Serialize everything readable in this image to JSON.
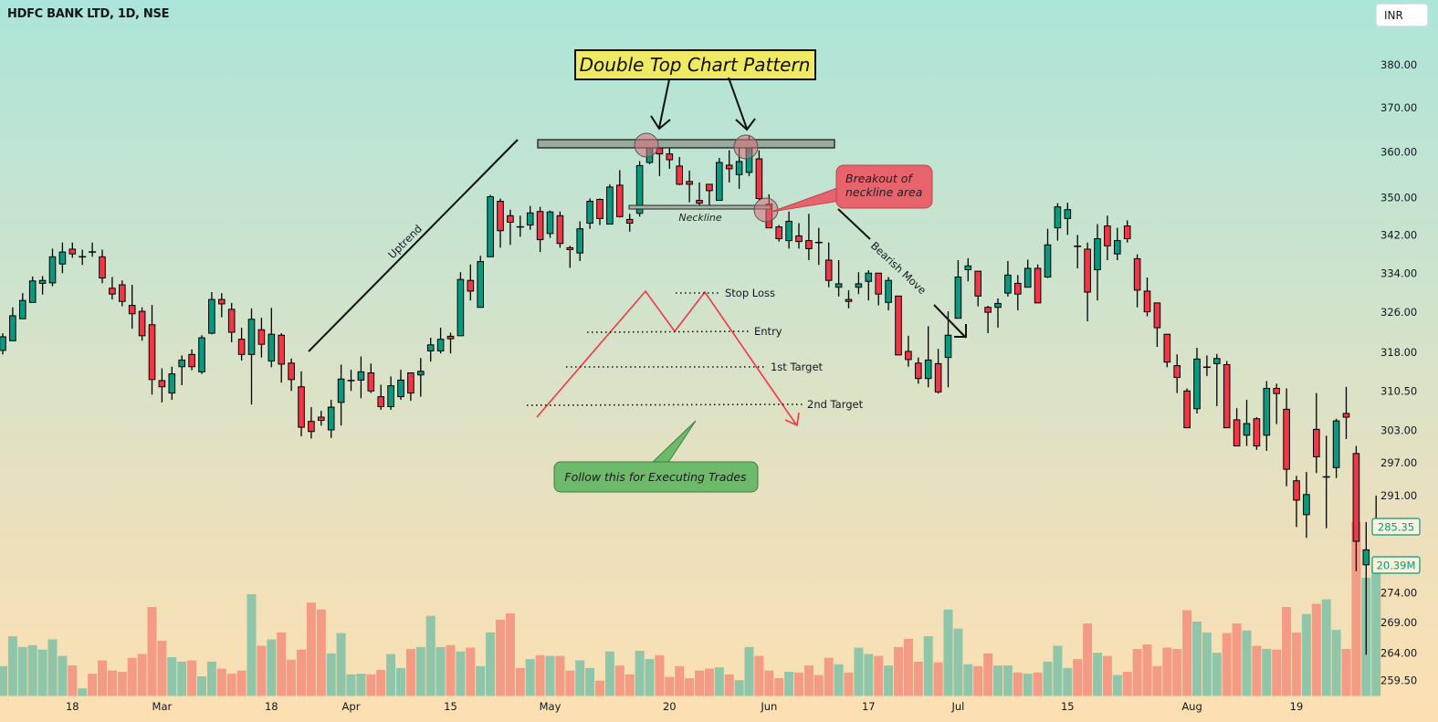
{
  "header": {
    "symbol_title": "HDFC BANK LTD, 1D, NSE",
    "currency": "INR"
  },
  "colors": {
    "up": "#089981",
    "down": "#f23645",
    "volume_up": "#8fc5a9",
    "volume_down": "#f39b84",
    "last_price": "#089981"
  },
  "annotations": {
    "title": "Double Top Chart Pattern",
    "neckline": "Neckline",
    "uptrend": "Uptrend",
    "breakout_line1": "Breakout of",
    "breakout_line2": "neckline area",
    "bearish_move": "Bearish Move",
    "stop_loss": "Stop Loss",
    "entry": "Entry",
    "target1": "1st Target",
    "target2": "2nd Target",
    "follow": "Follow this for Executing Trades"
  },
  "chart_data": {
    "type": "candlestick",
    "title": "HDFC BANK LTD, 1D, NSE",
    "y_scale": "log",
    "ylim": [
      259.5,
      384
    ],
    "grid": false,
    "y_ticks": [
      "380.00",
      "370.00",
      "360.00",
      "350.00",
      "342.00",
      "334.00",
      "326.00",
      "318.00",
      "310.50",
      "303.00",
      "297.00",
      "291.00",
      "274.00",
      "269.00",
      "264.00",
      "259.50"
    ],
    "x_ticks": [
      {
        "label": "18",
        "index": 7
      },
      {
        "label": "Mar",
        "index": 16
      },
      {
        "label": "18",
        "index": 27
      },
      {
        "label": "Apr",
        "index": 35
      },
      {
        "label": "15",
        "index": 45
      },
      {
        "label": "May",
        "index": 55
      },
      {
        "label": "20",
        "index": 67
      },
      {
        "label": "Jun",
        "index": 77
      },
      {
        "label": "17",
        "index": 87
      },
      {
        "label": "Jul",
        "index": 96
      },
      {
        "label": "15",
        "index": 107
      },
      {
        "label": "Aug",
        "index": 119.5
      },
      {
        "label": "19",
        "index": 130
      }
    ],
    "last_price": "285.35",
    "last_volume": "20.39M",
    "ohlc_fields": [
      "open",
      "high",
      "low",
      "close"
    ],
    "ohlc": [
      [
        318.4,
        321.8,
        317.6,
        321.1
      ],
      [
        320.3,
        327,
        320.3,
        325.3
      ],
      [
        324.7,
        329.9,
        324.7,
        328.4
      ],
      [
        328,
        333.3,
        328,
        332.4
      ],
      [
        331.9,
        333.4,
        329.6,
        332.5
      ],
      [
        332,
        339.1,
        331.3,
        337.4
      ],
      [
        335.9,
        340.4,
        334,
        338.4
      ],
      [
        339,
        340.4,
        337.2,
        338
      ],
      [
        337.3,
        338.9,
        335.7,
        337.4
      ],
      [
        338.4,
        340.4,
        337.4,
        338.2
      ],
      [
        337.4,
        338.9,
        331.9,
        333
      ],
      [
        330.9,
        333.2,
        328.6,
        329.7
      ],
      [
        331.6,
        332.5,
        327.2,
        328.2
      ],
      [
        327.4,
        331.6,
        322.7,
        325.7
      ],
      [
        326.2,
        327,
        320.3,
        321.3
      ],
      [
        323.5,
        327.5,
        309.8,
        312.7
      ],
      [
        312.5,
        314.9,
        308.3,
        311.3
      ],
      [
        310.1,
        315.2,
        308.8,
        313.8
      ],
      [
        315.2,
        317.4,
        311.6,
        316.5
      ],
      [
        317.6,
        318.6,
        314.5,
        315.2
      ],
      [
        314.2,
        321.4,
        313.8,
        320.9
      ],
      [
        321.8,
        330.1,
        321.6,
        328.6
      ],
      [
        328.6,
        329.9,
        325,
        327.7
      ],
      [
        326.6,
        327.9,
        320,
        322
      ],
      [
        320.6,
        322.9,
        316.4,
        317.6
      ],
      [
        317.6,
        326.8,
        307.9,
        324.6
      ],
      [
        322.5,
        324.9,
        317,
        319.6
      ],
      [
        316.3,
        326.9,
        315.1,
        321.6
      ],
      [
        321.4,
        321.8,
        312.1,
        315.7
      ],
      [
        315.9,
        316.8,
        310.5,
        312.7
      ],
      [
        311.3,
        314.3,
        301.9,
        303.6
      ],
      [
        304.7,
        307.4,
        301.5,
        302.8
      ],
      [
        305.5,
        306.7,
        303.9,
        304.9
      ],
      [
        303.1,
        308.8,
        301.6,
        307.4
      ],
      [
        308.3,
        315.6,
        303.9,
        312.8
      ],
      [
        312.4,
        314.6,
        310.5,
        312.5
      ],
      [
        312.6,
        317.2,
        309.1,
        314.2
      ],
      [
        314,
        315.8,
        310.1,
        310.5
      ],
      [
        309.4,
        311.7,
        306.9,
        307.5
      ],
      [
        307.5,
        313.3,
        306.9,
        311.5
      ],
      [
        309.4,
        314.6,
        308.8,
        312.6
      ],
      [
        314,
        314,
        308.6,
        310.1
      ],
      [
        313.6,
        316.9,
        309.4,
        314.3
      ],
      [
        318.3,
        320.9,
        316.2,
        319.5
      ],
      [
        318.3,
        322.9,
        317.8,
        320.6
      ],
      [
        321.2,
        321.9,
        317.8,
        320.7
      ],
      [
        321.3,
        334.2,
        321.3,
        332.7
      ],
      [
        332.5,
        335.8,
        328.4,
        330.3
      ],
      [
        327,
        337.6,
        327,
        336.4
      ],
      [
        337.4,
        350.6,
        337.4,
        350.2
      ],
      [
        349.2,
        349.8,
        339.3,
        342.9
      ],
      [
        346.1,
        347.4,
        339.9,
        344.7
      ],
      [
        343.7,
        346.1,
        341.6,
        343.6
      ],
      [
        344.1,
        348.2,
        343.1,
        346.7
      ],
      [
        347,
        348,
        338.4,
        341
      ],
      [
        342.3,
        347.2,
        341.4,
        346.9
      ],
      [
        346.1,
        347,
        339.3,
        340.2
      ],
      [
        339.3,
        339.7,
        335.1,
        338.9
      ],
      [
        338.2,
        344.9,
        336.5,
        343.3
      ],
      [
        344.5,
        349.8,
        343.3,
        349.2
      ],
      [
        349.6,
        349.8,
        344.1,
        345.5
      ],
      [
        344.3,
        352.9,
        344.3,
        352.3
      ],
      [
        352.7,
        356,
        345.7,
        345.9
      ],
      [
        345.3,
        346.5,
        342.7,
        344.5
      ],
      [
        346.6,
        358,
        345.9,
        357
      ],
      [
        357.7,
        362.6,
        357.3,
        361.7
      ],
      [
        361.8,
        362.8,
        354.7,
        359.6
      ],
      [
        359.6,
        362.8,
        356.3,
        358.3
      ],
      [
        356.9,
        358.9,
        352.7,
        352.9
      ],
      [
        353.5,
        355.9,
        349,
        352.9
      ],
      [
        349.4,
        353.3,
        347.4,
        348.8
      ],
      [
        352.9,
        352.9,
        347.4,
        351.5
      ],
      [
        349.4,
        358.7,
        349.4,
        357.7
      ],
      [
        357.1,
        360.4,
        353.3,
        356.3
      ],
      [
        355,
        362.8,
        351.9,
        357.9
      ],
      [
        355.5,
        363.8,
        354.7,
        361.4
      ],
      [
        358.5,
        360.4,
        349.4,
        349.8
      ],
      [
        348.6,
        350.7,
        343.5,
        343.5
      ],
      [
        343.7,
        344.1,
        340.6,
        341.2
      ],
      [
        340.8,
        347,
        339.1,
        344.9
      ],
      [
        341.8,
        344.5,
        339.1,
        340.6
      ],
      [
        340.8,
        346.5,
        336.7,
        339.1
      ],
      [
        340.4,
        343.5,
        335.7,
        340.3
      ],
      [
        336.7,
        340.4,
        331.1,
        332.5
      ],
      [
        331.1,
        336.7,
        329.2,
        331.8
      ],
      [
        328.6,
        330.5,
        326.8,
        328.2
      ],
      [
        331.1,
        334.2,
        329.7,
        331.8
      ],
      [
        332.3,
        334.6,
        328.4,
        334
      ],
      [
        334,
        334,
        327.4,
        329.7
      ],
      [
        328,
        333.2,
        326.4,
        332.5
      ],
      [
        329.3,
        329.3,
        317.5,
        317.5
      ],
      [
        318.2,
        321.3,
        315.2,
        316.6
      ],
      [
        315.9,
        317,
        311.9,
        312.9
      ],
      [
        312.9,
        323.2,
        311.2,
        316.5
      ],
      [
        315.8,
        318.7,
        310,
        310.3
      ],
      [
        317,
        326.2,
        311.2,
        321.4
      ],
      [
        324.8,
        336.7,
        324.8,
        333.2
      ],
      [
        334.7,
        337.1,
        332.3,
        335.5
      ],
      [
        334.4,
        334.4,
        327.2,
        329.3
      ],
      [
        327,
        327.3,
        321.8,
        326
      ],
      [
        327,
        328.8,
        322.9,
        327.8
      ],
      [
        329.9,
        336.5,
        329.2,
        333.6
      ],
      [
        331.9,
        333.6,
        326.4,
        329.7
      ],
      [
        331.1,
        336.8,
        331.1,
        335
      ],
      [
        335,
        335.8,
        327.9,
        327.9
      ],
      [
        333.2,
        343.3,
        333,
        339.9
      ],
      [
        343.5,
        348.8,
        340.8,
        348
      ],
      [
        345.5,
        348.9,
        342,
        347.4
      ],
      [
        339.6,
        342,
        335,
        339.5
      ],
      [
        339,
        340.4,
        324.2,
        330.1
      ],
      [
        334.7,
        344.3,
        328.4,
        341.2
      ],
      [
        343.9,
        346.1,
        336.7,
        339.7
      ],
      [
        338,
        343.5,
        336.7,
        340.8
      ],
      [
        343.9,
        345.1,
        340.4,
        341.2
      ],
      [
        337,
        337.9,
        327,
        330.5
      ],
      [
        330.3,
        333.1,
        325.2,
        326.1
      ],
      [
        327.9,
        327.9,
        319.1,
        322.9
      ],
      [
        321.6,
        321.6,
        315.1,
        316.1
      ],
      [
        315.4,
        317.6,
        310.1,
        313.1
      ],
      [
        310.5,
        311,
        303.5,
        303.5
      ],
      [
        307.1,
        318.9,
        306.2,
        316.7
      ],
      [
        315,
        317.4,
        313.4,
        315.1
      ],
      [
        315.8,
        317.7,
        307.6,
        316.8
      ],
      [
        315.6,
        316.3,
        303.5,
        303.5
      ],
      [
        305,
        307.2,
        300.1,
        300.1
      ],
      [
        302.1,
        308.8,
        300.1,
        304.3
      ],
      [
        305.2,
        305.5,
        299.4,
        300.1
      ],
      [
        302.1,
        312.4,
        299.2,
        311
      ],
      [
        311,
        311.9,
        304.2,
        310
      ],
      [
        307,
        311,
        292.7,
        295.8
      ],
      [
        293.7,
        294.6,
        285.4,
        290.2
      ],
      [
        287.6,
        295.3,
        283.5,
        291.2
      ],
      [
        303.2,
        310.1,
        295.1,
        298.1
      ],
      [
        294.3,
        302,
        285.2,
        294.4
      ],
      [
        296.1,
        305.2,
        294.2,
        304.8
      ],
      [
        306.2,
        311.3,
        301.4,
        305.5
      ],
      [
        298.7,
        300.1,
        277.7,
        282.9
      ],
      [
        278.8,
        286.3,
        263.7,
        281.4
      ],
      [
        284.3,
        291,
        284.3,
        285.35
      ]
    ],
    "volume_unit": "M",
    "volume": [
      4.7,
      9.4,
      7.7,
      8.0,
      7.3,
      8.9,
      6.3,
      4.8,
      1.2,
      3.5,
      5.6,
      4.0,
      3.8,
      6.0,
      6.6,
      14.0,
      8.7,
      6.1,
      5.4,
      5.6,
      3.1,
      5.4,
      4.3,
      3.5,
      4.0,
      16.0,
      7.9,
      8.9,
      10.0,
      5.7,
      7.3,
      14.7,
      13.6,
      6.7,
      9.9,
      3.4,
      3.5,
      3.4,
      4.1,
      6.6,
      4.4,
      7.4,
      7.7,
      12.6,
      7.7,
      8.0,
      7.0,
      7.6,
      4.7,
      10.0,
      12.0,
      13.0,
      4.4,
      5.8,
      6.4,
      6.3,
      6.3,
      4.0,
      5.6,
      4.4,
      2.4,
      7.0,
      4.8,
      3.4,
      7.1,
      5.8,
      6.4,
      3.0,
      4.7,
      2.8,
      4.0,
      4.3,
      4.5,
      3.4,
      2.5,
      7.7,
      6.3,
      4.0,
      2.8,
      3.8,
      3.7,
      4.8,
      3.3,
      6.0,
      5.0,
      3.7,
      7.6,
      6.6,
      6.3,
      4.8,
      7.7,
      9.0,
      5.4,
      9.4,
      5.3,
      13.6,
      10.6,
      5.0,
      4.7,
      6.7,
      4.8,
      4.8,
      3.7,
      3.5,
      3.7,
      5.4,
      7.9,
      4.4,
      5.8,
      11.4,
      6.8,
      6.3,
      3.3,
      3.8,
      7.4,
      8.1,
      4.7,
      7.6,
      7.4,
      13.5,
      11.7,
      10.0,
      6.8,
      9.9,
      11.4,
      10.3,
      7.9,
      7.4,
      7.3,
      14.0,
      10.0,
      12.9,
      14.5,
      15.2,
      10.4,
      7.4,
      27.4,
      18.6,
      20.39
    ]
  }
}
